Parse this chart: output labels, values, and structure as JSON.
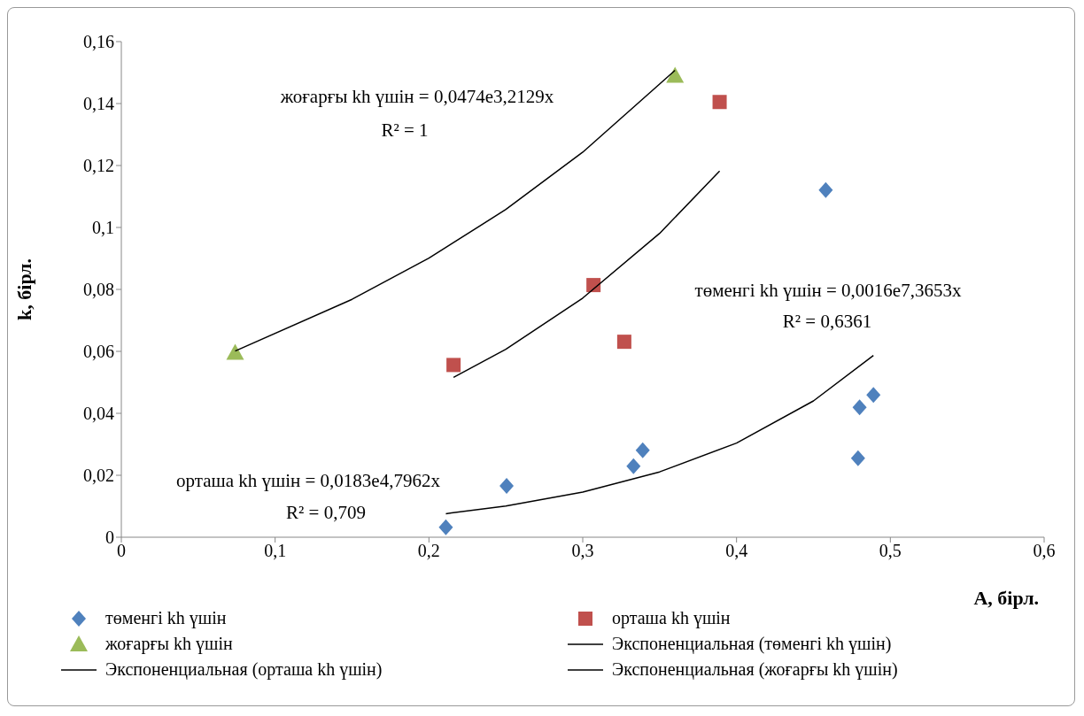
{
  "chart_data": {
    "type": "scatter",
    "xlabel": "A, бірл.",
    "ylabel": "k, бірл.",
    "xlim": [
      0,
      0.6
    ],
    "xticks": [
      {
        "value": 0,
        "label": "0"
      },
      {
        "value": 0.1,
        "label": "0,1"
      },
      {
        "value": 0.2,
        "label": "0,2"
      },
      {
        "value": 0.3,
        "label": "0,3"
      },
      {
        "value": 0.4,
        "label": "0,4"
      },
      {
        "value": 0.5,
        "label": "0,5"
      },
      {
        "value": 0.6,
        "label": "0,6"
      }
    ],
    "ylim": [
      0,
      0.16
    ],
    "yticks": [
      {
        "value": 0,
        "label": "0"
      },
      {
        "value": 0.02,
        "label": "0,02"
      },
      {
        "value": 0.04,
        "label": "0,04"
      },
      {
        "value": 0.06,
        "label": "0,06"
      },
      {
        "value": 0.08,
        "label": "0,08"
      },
      {
        "value": 0.1,
        "label": "0,1"
      },
      {
        "value": 0.12,
        "label": "0,12"
      },
      {
        "value": 0.14,
        "label": "0,14"
      },
      {
        "value": 0.16,
        "label": "0,16"
      }
    ],
    "grid": false,
    "legend": "bottom",
    "series": [
      {
        "name": "төменгі  kh үшін",
        "marker": "diamond",
        "color": "#4f81bd",
        "x": [
          0.211,
          0.2505,
          0.333,
          0.339,
          0.458,
          0.48,
          0.479,
          0.489
        ],
        "values": [
          0.0032,
          0.0166,
          0.0229,
          0.0281,
          0.1121,
          0.0419,
          0.0255,
          0.0459
        ]
      },
      {
        "name": "орташа kh үшін",
        "marker": "square",
        "color": "#c0504d",
        "x": [
          0.216,
          0.307,
          0.327,
          0.389
        ],
        "values": [
          0.0556,
          0.0814,
          0.0631,
          0.1405
        ]
      },
      {
        "name": "жоғарғы kh үшін",
        "marker": "triangle",
        "color": "#9bbb59",
        "x": [
          0.074,
          0.36
        ],
        "values": [
          0.0596,
          0.149
        ]
      },
      {
        "name": "Экспоненциальная  (төменгі kh үшін)",
        "type": "line",
        "marker": "none",
        "color": "#000000",
        "x": [
          0.211,
          0.25,
          0.3,
          0.35,
          0.4,
          0.45,
          0.489
        ],
        "values": [
          0.0076,
          0.0101,
          0.0146,
          0.0211,
          0.0304,
          0.044,
          0.0587
        ]
      },
      {
        "name": "Экспоненциальная  (орташа kh үшін)",
        "type": "line",
        "marker": "none",
        "color": "#000000",
        "x": [
          0.216,
          0.25,
          0.3,
          0.35,
          0.389
        ],
        "values": [
          0.0516,
          0.0607,
          0.0772,
          0.0981,
          0.1182
        ]
      },
      {
        "name": "Экспоненциальная  (жоғарғы kh үшін)",
        "type": "line",
        "marker": "none",
        "color": "#000000",
        "x": [
          0.074,
          0.15,
          0.2,
          0.25,
          0.3,
          0.36
        ],
        "values": [
          0.0601,
          0.0768,
          0.0901,
          0.1058,
          0.1243,
          0.1507
        ]
      }
    ],
    "annotations": [
      "жоғарғы kh үшін = 0,0474e3,2129x",
      "R² = 1",
      "төменгі kh үшін = 0,0016e7,3653x",
      "R² = 0,6361",
      "орташа kh үшін = 0,0183e4,7962x",
      "R² = 0,709"
    ]
  }
}
